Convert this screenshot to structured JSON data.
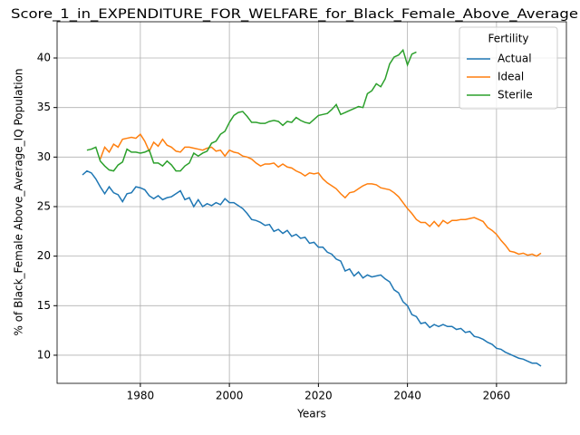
{
  "chart_data": {
    "type": "line",
    "title": "Score_1_in_EXPENDITURE_FOR_WELFARE_for_Black_Female_Above_Average",
    "xlabel": "Years",
    "ylabel": "% of Black_Female Above_Average_IQ Population",
    "legend_title": "Fertility",
    "legend": "upper right",
    "grid": true,
    "xlim": [
      1961.3,
      2075.7
    ],
    "ylim": [
      7.16,
      43.66
    ],
    "xticks": [
      1980,
      2000,
      2020,
      2040,
      2060
    ],
    "yticks": [
      10,
      15,
      20,
      25,
      30,
      35,
      40
    ],
    "series": [
      {
        "name": "Actual",
        "color": "#1f77b4",
        "x": [
          1967,
          1968,
          1969,
          1970,
          1971,
          1972,
          1973,
          1974,
          1975,
          1976,
          1977,
          1978,
          1979,
          1980,
          1981,
          1982,
          1983,
          1984,
          1985,
          1986,
          1987,
          1988,
          1989,
          1990,
          1991,
          1992,
          1993,
          1994,
          1995,
          1996,
          1997,
          1998,
          1999,
          2000,
          2001,
          2002,
          2003,
          2004,
          2005,
          2006,
          2007,
          2008,
          2009,
          2010,
          2011,
          2012,
          2013,
          2014,
          2015,
          2016,
          2017,
          2018,
          2019,
          2020,
          2021,
          2022,
          2023,
          2024,
          2025,
          2026,
          2027,
          2028,
          2029,
          2030,
          2031,
          2032,
          2033,
          2034,
          2035,
          2036,
          2037,
          2038,
          2039,
          2040,
          2041,
          2042,
          2043,
          2044,
          2045,
          2046,
          2047,
          2048,
          2049,
          2050,
          2051,
          2052,
          2053,
          2054,
          2055,
          2056,
          2057,
          2058,
          2059,
          2060,
          2061,
          2062,
          2063,
          2064,
          2065,
          2066,
          2067,
          2068,
          2069,
          2070
        ],
        "values": [
          28.2,
          28.6,
          28.4,
          27.8,
          27.0,
          26.3,
          27.0,
          26.4,
          26.2,
          25.5,
          26.3,
          26.4,
          27.0,
          26.9,
          26.7,
          26.1,
          25.8,
          26.1,
          25.7,
          25.9,
          26.0,
          26.3,
          26.6,
          25.7,
          25.9,
          25.0,
          25.7,
          25.0,
          25.3,
          25.1,
          25.4,
          25.2,
          25.8,
          25.4,
          25.4,
          25.1,
          24.8,
          24.3,
          23.7,
          23.6,
          23.4,
          23.1,
          23.2,
          22.5,
          22.7,
          22.3,
          22.6,
          22.0,
          22.2,
          21.8,
          21.9,
          21.3,
          21.4,
          20.9,
          20.9,
          20.4,
          20.2,
          19.7,
          19.5,
          18.5,
          18.7,
          18.0,
          18.4,
          17.8,
          18.1,
          17.9,
          18.0,
          18.1,
          17.7,
          17.4,
          16.6,
          16.3,
          15.4,
          15.0,
          14.1,
          13.9,
          13.2,
          13.3,
          12.8,
          13.1,
          12.9,
          13.1,
          12.9,
          12.9,
          12.6,
          12.7,
          12.3,
          12.4,
          11.9,
          11.8,
          11.6,
          11.3,
          11.1,
          10.7,
          10.6,
          10.3,
          10.1,
          9.9,
          9.7,
          9.6,
          9.4,
          9.2,
          9.2,
          8.9
        ]
      },
      {
        "name": "Ideal",
        "color": "#ff7f0e",
        "x": [
          1971,
          1972,
          1973,
          1974,
          1975,
          1976,
          1977,
          1978,
          1979,
          1980,
          1981,
          1982,
          1983,
          1984,
          1985,
          1986,
          1987,
          1988,
          1989,
          1990,
          1991,
          1992,
          1993,
          1994,
          1995,
          1996,
          1997,
          1998,
          1999,
          2000,
          2001,
          2002,
          2003,
          2004,
          2005,
          2006,
          2007,
          2008,
          2009,
          2010,
          2011,
          2012,
          2013,
          2014,
          2015,
          2016,
          2017,
          2018,
          2019,
          2020,
          2021,
          2022,
          2023,
          2024,
          2025,
          2026,
          2027,
          2028,
          2029,
          2030,
          2031,
          2032,
          2033,
          2034,
          2035,
          2036,
          2037,
          2038,
          2039,
          2040,
          2041,
          2042,
          2043,
          2044,
          2045,
          2046,
          2047,
          2048,
          2049,
          2050,
          2051,
          2052,
          2053,
          2054,
          2055,
          2056,
          2057,
          2058,
          2059,
          2060,
          2061,
          2062,
          2063,
          2064,
          2065,
          2066,
          2067,
          2068,
          2069,
          2070
        ],
        "values": [
          29.8,
          31.0,
          30.5,
          31.3,
          31.0,
          31.8,
          31.9,
          32.0,
          31.9,
          32.3,
          31.6,
          30.6,
          31.5,
          31.1,
          31.8,
          31.2,
          31.0,
          30.6,
          30.5,
          31.0,
          31.0,
          30.9,
          30.8,
          30.7,
          30.9,
          31.0,
          30.6,
          30.7,
          30.1,
          30.7,
          30.5,
          30.4,
          30.1,
          30.0,
          29.8,
          29.4,
          29.1,
          29.3,
          29.3,
          29.4,
          29.0,
          29.3,
          29.0,
          28.9,
          28.6,
          28.4,
          28.1,
          28.4,
          28.3,
          28.4,
          27.8,
          27.4,
          27.1,
          26.8,
          26.3,
          25.9,
          26.4,
          26.5,
          26.8,
          27.1,
          27.3,
          27.3,
          27.2,
          26.9,
          26.8,
          26.7,
          26.4,
          26.0,
          25.4,
          24.8,
          24.3,
          23.7,
          23.4,
          23.4,
          23.0,
          23.5,
          23.0,
          23.6,
          23.3,
          23.6,
          23.6,
          23.7,
          23.7,
          23.8,
          23.9,
          23.7,
          23.5,
          22.9,
          22.6,
          22.2,
          21.6,
          21.1,
          20.5,
          20.4,
          20.2,
          20.3,
          20.1,
          20.2,
          20.0,
          20.3
        ]
      },
      {
        "name": "Sterile",
        "color": "#2ca02c",
        "x": [
          1968,
          1969,
          1970,
          1971,
          1972,
          1973,
          1974,
          1975,
          1976,
          1977,
          1978,
          1979,
          1980,
          1981,
          1982,
          1983,
          1984,
          1985,
          1986,
          1987,
          1988,
          1989,
          1990,
          1991,
          1992,
          1993,
          1994,
          1995,
          1996,
          1997,
          1998,
          1999,
          2000,
          2001,
          2002,
          2003,
          2004,
          2005,
          2006,
          2007,
          2008,
          2009,
          2010,
          2011,
          2012,
          2013,
          2014,
          2015,
          2016,
          2017,
          2018,
          2019,
          2020,
          2021,
          2022,
          2023,
          2024,
          2025,
          2026,
          2027,
          2028,
          2029,
          2030,
          2031,
          2032,
          2033,
          2034,
          2035,
          2036,
          2037,
          2038,
          2039,
          2040,
          2041,
          2042
        ],
        "values": [
          30.7,
          30.8,
          31.0,
          29.6,
          29.1,
          28.7,
          28.6,
          29.2,
          29.5,
          30.8,
          30.5,
          30.5,
          30.4,
          30.5,
          30.7,
          29.4,
          29.4,
          29.1,
          29.6,
          29.2,
          28.6,
          28.6,
          29.1,
          29.4,
          30.4,
          30.1,
          30.4,
          30.6,
          31.4,
          31.6,
          32.3,
          32.6,
          33.5,
          34.2,
          34.5,
          34.6,
          34.1,
          33.5,
          33.5,
          33.4,
          33.4,
          33.6,
          33.7,
          33.6,
          33.2,
          33.6,
          33.5,
          34.0,
          33.7,
          33.5,
          33.4,
          33.8,
          34.2,
          34.3,
          34.4,
          34.8,
          35.3,
          34.3,
          34.5,
          34.7,
          34.9,
          35.1,
          35.0,
          36.4,
          36.7,
          37.4,
          37.1,
          37.9,
          39.4,
          40.1,
          40.3,
          40.8,
          39.3,
          40.4,
          40.6
        ]
      }
    ]
  }
}
